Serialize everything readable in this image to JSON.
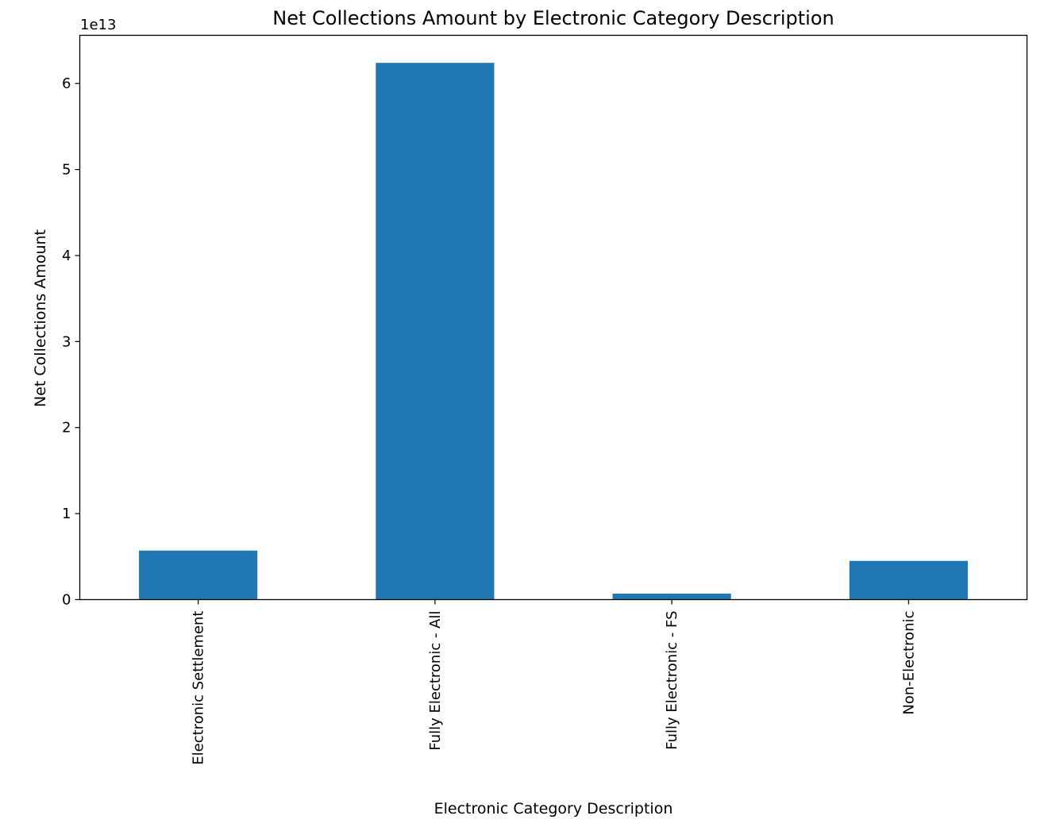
{
  "chart_data": {
    "type": "bar",
    "title": "Net Collections Amount by Electronic Category Description",
    "xlabel": "Electronic Category Description",
    "ylabel": "Net Collections Amount",
    "offset_label": "1e13",
    "categories": [
      "Electronic Settlement",
      "Fully Electronic - All",
      "Fully Electronic - FS",
      "Non-Electronic"
    ],
    "values": [
      0.57,
      6.24,
      0.07,
      0.45
    ],
    "ylim": [
      0,
      6.56
    ],
    "yticks": [
      0,
      1,
      2,
      3,
      4,
      5,
      6
    ],
    "ytick_labels": [
      "0",
      "1",
      "2",
      "3",
      "4",
      "5",
      "6"
    ],
    "bar_color": "#1f77b4",
    "grid": false,
    "legend": "none"
  }
}
